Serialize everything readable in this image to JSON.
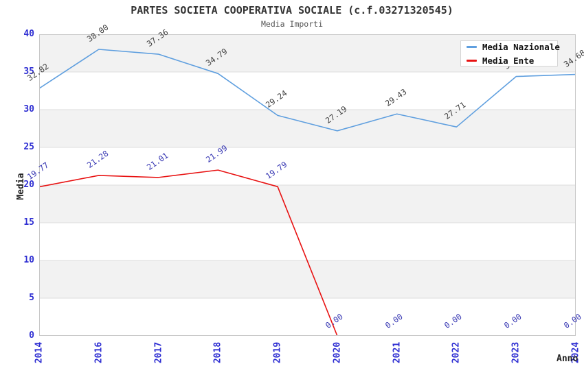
{
  "header": {
    "title": "PARTES SOCIETA COOPERATIVA SOCIALE (c.f.03271320545)",
    "subtitle": "Media Importi"
  },
  "axes": {
    "y_title": "Media",
    "x_title": "Anno",
    "tick_color": "#2e2ed2"
  },
  "colors": {
    "band_fill": "#f2f2f2",
    "gridline": "#dcdcdc",
    "plot_border": "#c8c8c8",
    "background": "#ffffff"
  },
  "chart_data": {
    "type": "line",
    "title": "PARTES SOCIETA COOPERATIVA SOCIALE (c.f.03271320545)",
    "subtitle": "Media Importi",
    "xlabel": "Anno",
    "ylabel": "Media",
    "categories": [
      "2014",
      "2016",
      "2017",
      "2018",
      "2019",
      "2020",
      "2021",
      "2022",
      "2023",
      "2024"
    ],
    "series": [
      {
        "name": "Media Nazionale",
        "color": "#5f9fdf",
        "label_color": "#3f3f3f",
        "values": [
          32.82,
          38.0,
          37.36,
          34.79,
          29.24,
          27.19,
          29.43,
          27.71,
          34.4,
          34.68
        ],
        "labels": [
          "32.82",
          "38.00",
          "37.36",
          "34.79",
          "29.24",
          "27.19",
          "29.43",
          "27.71",
          "34.40",
          "34.68"
        ]
      },
      {
        "name": "Media Ente",
        "color": "#e81212",
        "label_color": "#3535b2",
        "values": [
          19.77,
          21.28,
          21.01,
          21.99,
          19.79,
          0.0,
          0.0,
          0.0,
          0.0,
          0.0
        ],
        "labels": [
          "19.77",
          "21.28",
          "21.01",
          "21.99",
          "19.79",
          "0.00",
          "0.00",
          "0.00",
          "0.00",
          "0.00"
        ]
      }
    ],
    "ylim": [
      0,
      40
    ],
    "y_tick_step": 5,
    "grid": "horizontal",
    "shaded_bands": [
      [
        5,
        10
      ],
      [
        15,
        20
      ],
      [
        25,
        30
      ],
      [
        35,
        40
      ]
    ],
    "legend_position": "top-right",
    "note_2023_label_occluded_by_legend": true
  }
}
